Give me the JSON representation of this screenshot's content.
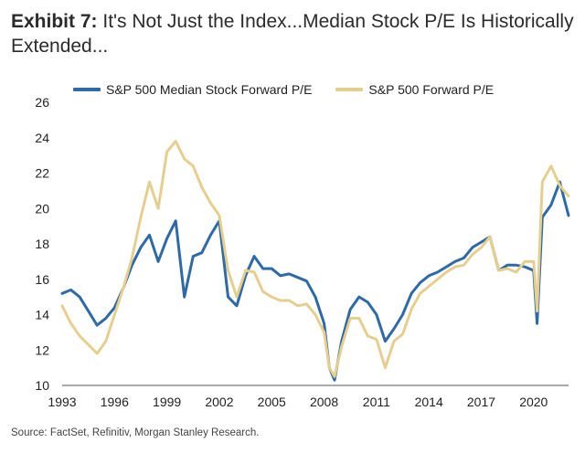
{
  "title": {
    "exhibit": "Exhibit 7:",
    "text": "It's Not Just the Index...Median Stock P/E Is Historically Extended..."
  },
  "source": "Source: FactSet, Refinitiv, Morgan Stanley Research.",
  "colors": {
    "median": "#2e6aa8",
    "index": "#e6cf8e",
    "axis": "#555555"
  },
  "chart_data": {
    "type": "line",
    "title": "It's Not Just the Index...Median Stock P/E Is Historically Extended...",
    "xlabel": "",
    "ylabel": "",
    "xlim": [
      1993,
      2022
    ],
    "ylim": [
      10,
      26
    ],
    "x_ticks": [
      1993,
      1996,
      1999,
      2002,
      2005,
      2008,
      2011,
      2014,
      2017,
      2020
    ],
    "y_ticks": [
      10,
      12,
      14,
      16,
      18,
      20,
      22,
      24,
      26
    ],
    "legend_position": "top",
    "series": [
      {
        "name": "S&P 500 Median Stock Forward P/E",
        "color": "#2e6aa8",
        "x": [
          1993.0,
          1993.5,
          1994.0,
          1994.5,
          1995.0,
          1995.5,
          1996.0,
          1996.5,
          1997.0,
          1997.5,
          1998.0,
          1998.5,
          1999.0,
          1999.5,
          2000.0,
          2000.5,
          2001.0,
          2001.5,
          2002.0,
          2002.5,
          2003.0,
          2003.5,
          2004.0,
          2004.5,
          2005.0,
          2005.5,
          2006.0,
          2006.5,
          2007.0,
          2007.5,
          2008.0,
          2008.3,
          2008.6,
          2009.0,
          2009.5,
          2010.0,
          2010.5,
          2011.0,
          2011.5,
          2012.0,
          2012.5,
          2013.0,
          2013.5,
          2014.0,
          2014.5,
          2015.0,
          2015.5,
          2016.0,
          2016.5,
          2017.0,
          2017.5,
          2018.0,
          2018.5,
          2019.0,
          2019.5,
          2020.0,
          2020.2,
          2020.5,
          2021.0,
          2021.5,
          2022.0
        ],
        "values": [
          15.2,
          15.4,
          15.0,
          14.2,
          13.4,
          13.8,
          14.4,
          15.5,
          16.8,
          17.8,
          18.5,
          17.0,
          18.3,
          19.3,
          15.0,
          17.3,
          17.5,
          18.5,
          19.3,
          15.0,
          14.5,
          16.2,
          17.3,
          16.6,
          16.6,
          16.2,
          16.3,
          16.1,
          15.9,
          15.0,
          13.5,
          11.0,
          10.3,
          12.5,
          14.3,
          15.0,
          14.7,
          14.0,
          12.5,
          13.2,
          14.0,
          15.2,
          15.8,
          16.2,
          16.4,
          16.7,
          17.0,
          17.2,
          17.8,
          18.1,
          18.4,
          16.5,
          16.8,
          16.8,
          16.7,
          16.5,
          13.5,
          19.5,
          20.2,
          21.5,
          19.6
        ]
      },
      {
        "name": "S&P 500 Forward P/E",
        "color": "#e6cf8e",
        "x": [
          1993.0,
          1993.5,
          1994.0,
          1994.5,
          1995.0,
          1995.5,
          1996.0,
          1996.5,
          1997.0,
          1997.5,
          1998.0,
          1998.5,
          1999.0,
          1999.5,
          2000.0,
          2000.5,
          2001.0,
          2001.5,
          2002.0,
          2002.5,
          2003.0,
          2003.5,
          2004.0,
          2004.5,
          2005.0,
          2005.5,
          2006.0,
          2006.5,
          2007.0,
          2007.5,
          2008.0,
          2008.3,
          2008.6,
          2009.0,
          2009.5,
          2010.0,
          2010.5,
          2011.0,
          2011.5,
          2012.0,
          2012.5,
          2013.0,
          2013.5,
          2014.0,
          2014.5,
          2015.0,
          2015.5,
          2016.0,
          2016.5,
          2017.0,
          2017.5,
          2018.0,
          2018.5,
          2019.0,
          2019.5,
          2020.0,
          2020.2,
          2020.5,
          2021.0,
          2021.5,
          2022.0
        ],
        "values": [
          14.5,
          13.5,
          12.8,
          12.3,
          11.8,
          12.5,
          14.0,
          15.5,
          17.2,
          19.5,
          21.5,
          20.0,
          23.2,
          23.8,
          22.8,
          22.4,
          21.2,
          20.3,
          19.6,
          16.5,
          15.0,
          16.5,
          16.4,
          15.3,
          15.0,
          14.8,
          14.8,
          14.5,
          14.6,
          14.0,
          13.0,
          11.0,
          10.5,
          12.2,
          13.8,
          13.8,
          12.8,
          12.6,
          11.0,
          12.5,
          12.9,
          14.3,
          15.2,
          15.6,
          16.0,
          16.4,
          16.7,
          16.8,
          17.4,
          17.8,
          18.4,
          16.5,
          16.6,
          16.4,
          17.0,
          17.0,
          14.2,
          21.5,
          22.4,
          21.3,
          20.7
        ]
      }
    ]
  }
}
